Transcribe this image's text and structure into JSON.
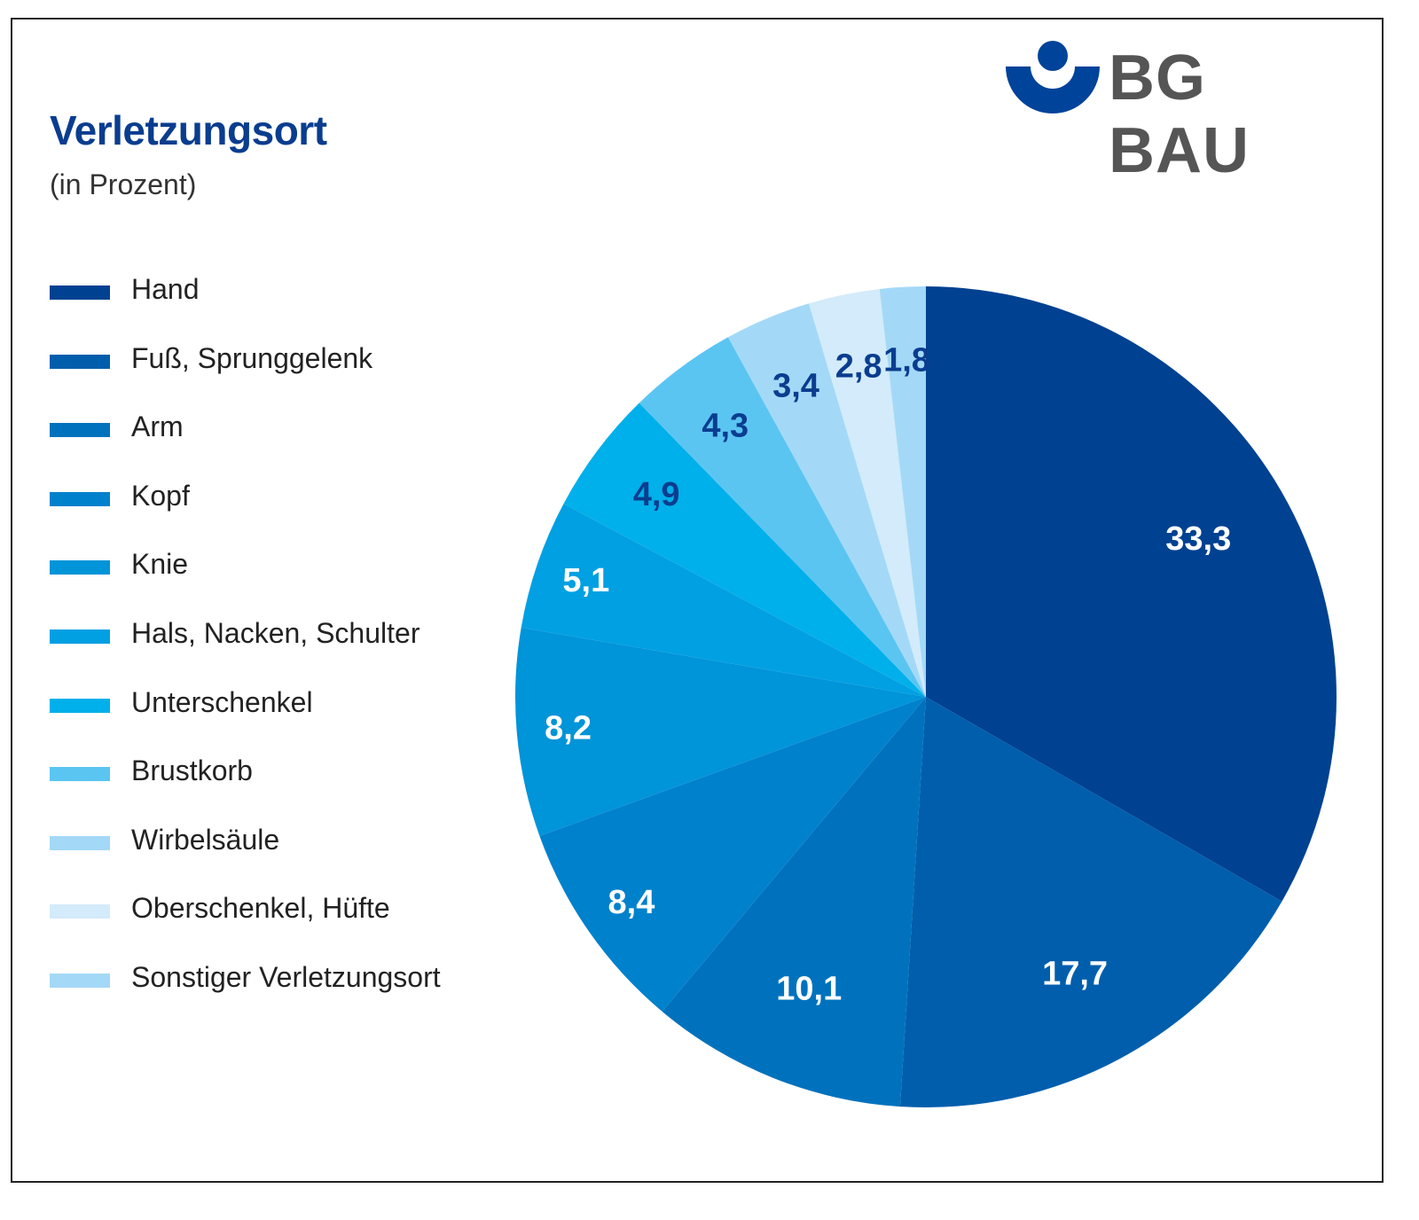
{
  "logo": {
    "text": "BG BAU",
    "icon": "bg-bau-emblem-icon",
    "text_color": "#555555",
    "icon_color": "#00439a"
  },
  "chart_data": {
    "type": "pie",
    "title": "Verletzungsort",
    "subtitle": "(in Prozent)",
    "legend_position": "left",
    "start_angle_deg": 0,
    "direction": "clockwise",
    "slices": [
      {
        "label": "Hand",
        "value": 33.3,
        "display": "33,3",
        "color": "#004191",
        "text_color": "#ffffff"
      },
      {
        "label": "Fuß, Sprunggelenk",
        "value": 17.7,
        "display": "17,7",
        "color": "#005eac",
        "text_color": "#ffffff"
      },
      {
        "label": "Arm",
        "value": 10.1,
        "display": "10,1",
        "color": "#0072bd",
        "text_color": "#ffffff"
      },
      {
        "label": "Kopf",
        "value": 8.4,
        "display": "8,4",
        "color": "#0081cc",
        "text_color": "#ffffff"
      },
      {
        "label": "Knie",
        "value": 8.2,
        "display": "8,2",
        "color": "#0094d8",
        "text_color": "#ffffff"
      },
      {
        "label": "Hals, Nacken, Schulter",
        "value": 5.1,
        "display": "5,1",
        "color": "#00a0e2",
        "text_color": "#ffffff"
      },
      {
        "label": "Unterschenkel",
        "value": 4.9,
        "display": "4,9",
        "color": "#00b0ea",
        "text_color": "#0a3d8f"
      },
      {
        "label": "Brustkorb",
        "value": 4.3,
        "display": "4,3",
        "color": "#5bc5f2",
        "text_color": "#0a3d8f"
      },
      {
        "label": "Wirbelsäule",
        "value": 3.4,
        "display": "3,4",
        "color": "#a3d9f7",
        "text_color": "#0a3d8f"
      },
      {
        "label": "Oberschenkel, Hüfte",
        "value": 2.8,
        "display": "2,8",
        "color": "#d3ebfa",
        "text_color": "#0a3d8f"
      },
      {
        "label": "Sonstiger Verletzungsort",
        "value": 1.8,
        "display": "1,8",
        "color": "#a3d9f7",
        "text_color": "#0a3d8f"
      }
    ]
  }
}
